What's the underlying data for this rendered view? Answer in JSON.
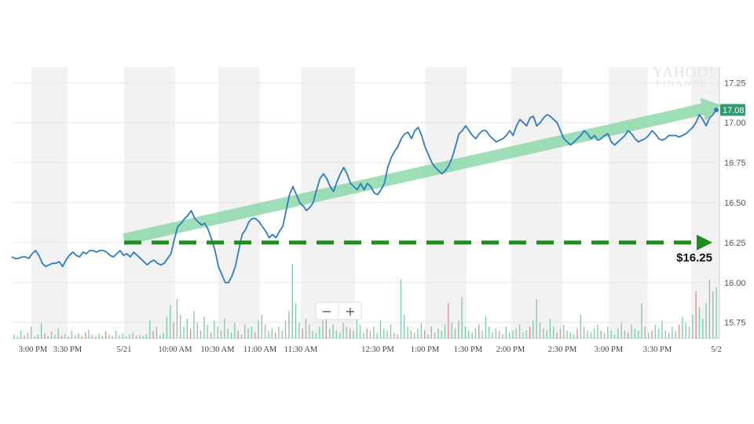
{
  "watermark": {
    "line1": "YAHOO!",
    "line2": "FINANCE"
  },
  "zoom": {
    "minus": "−",
    "plus": "+"
  },
  "price_annotation": {
    "label": "$16.25",
    "level": 16.25,
    "color": "#1e8c1e"
  },
  "trend_arrow": {
    "from": [
      16.27,
      16.27
    ],
    "to": [
      17.11,
      17.11
    ],
    "color": "#7dd4a0"
  },
  "last_price": {
    "label": "17.08",
    "value": 17.08,
    "color": "#2e9c6e"
  },
  "colors": {
    "line": "#2b7bc6",
    "volume_up": "#7fc9a2",
    "volume_down": "#e08a8a",
    "band": "#f2f2f2"
  },
  "chart_data": {
    "type": "line",
    "title": "",
    "xlabel": "",
    "ylabel": "",
    "ylim": [
      15.65,
      17.35
    ],
    "y_ticks": [
      "17.25",
      "17.00",
      "16.75",
      "16.50",
      "16.25",
      "16.00",
      "15.75"
    ],
    "x_ticks": [
      "3:00 PM",
      "3:30 PM",
      "5/21",
      "10:00 AM",
      "10:30 AM",
      "11:00 AM",
      "11:30 AM",
      "12:30 PM",
      "1:00 PM",
      "1:30 PM",
      "2:00 PM",
      "2:30 PM",
      "3:00 PM",
      "3:30 PM",
      "5/2"
    ],
    "grid": true,
    "legend": "none",
    "series": [
      {
        "values": [
          16.16,
          16.15,
          16.15,
          16.16,
          16.16,
          16.15,
          16.18,
          16.2,
          16.17,
          16.12,
          16.1,
          16.11,
          16.12,
          16.12,
          16.13,
          16.1,
          16.14,
          16.17,
          16.19,
          16.17,
          16.16,
          16.19,
          16.18,
          16.2,
          16.2,
          16.19,
          16.2,
          16.2,
          16.19,
          16.17,
          16.16,
          16.18,
          16.2,
          16.17,
          16.18,
          16.16,
          16.19,
          16.17,
          16.15,
          16.13,
          16.11,
          16.13,
          16.14,
          16.12,
          16.11,
          16.12,
          16.15,
          16.18,
          16.27,
          16.35,
          16.37,
          16.4,
          16.42,
          16.45,
          16.4,
          16.38,
          16.36,
          16.37,
          16.33,
          16.27,
          16.2,
          16.1,
          16.05,
          16.0,
          16.0,
          16.04,
          16.1,
          16.2,
          16.3,
          16.33,
          16.38,
          16.4,
          16.4,
          16.38,
          16.35,
          16.32,
          16.28,
          16.3,
          16.28,
          16.32,
          16.35,
          16.45,
          16.55,
          16.6,
          16.55,
          16.5,
          16.48,
          16.45,
          16.47,
          16.5,
          16.58,
          16.65,
          16.68,
          16.65,
          16.6,
          16.57,
          16.63,
          16.68,
          16.72,
          16.68,
          16.62,
          16.6,
          16.58,
          16.62,
          16.58,
          16.62,
          16.6,
          16.56,
          16.55,
          16.58,
          16.62,
          16.72,
          16.78,
          16.82,
          16.85,
          16.9,
          16.93,
          16.94,
          16.9,
          16.95,
          16.97,
          16.92,
          16.85,
          16.8,
          16.75,
          16.72,
          16.7,
          16.68,
          16.7,
          16.73,
          16.78,
          16.85,
          16.93,
          16.95,
          16.98,
          16.95,
          16.92,
          16.9,
          16.93,
          16.95,
          16.95,
          16.92,
          16.9,
          16.88,
          16.89,
          16.9,
          16.92,
          16.95,
          16.92,
          16.98,
          17.02,
          17.0,
          16.98,
          17.03,
          17.04,
          16.98,
          17.0,
          17.03,
          17.05,
          17.04,
          17.02,
          17.0,
          16.95,
          16.9,
          16.88,
          16.86,
          16.88,
          16.9,
          16.92,
          16.95,
          16.93,
          16.9,
          16.92,
          16.89,
          16.9,
          16.92,
          16.93,
          16.88,
          16.86,
          16.88,
          16.9,
          16.92,
          16.95,
          16.93,
          16.9,
          16.88,
          16.89,
          16.9,
          16.92,
          16.95,
          16.93,
          16.9,
          16.89,
          16.9,
          16.92,
          16.92,
          16.92,
          16.91,
          16.92,
          16.93,
          16.95,
          16.97,
          17.0,
          17.05,
          17.02,
          16.98,
          17.03,
          17.05,
          17.08
        ]
      }
    ],
    "volume": {
      "values": [
        0.1,
        0.05,
        0.2,
        0.08,
        0.15,
        0.3,
        0.05,
        0.1,
        0.4,
        0.12,
        0.06,
        0.18,
        0.09,
        0.25,
        0.07,
        0.11,
        0.05,
        0.2,
        0.08,
        0.13,
        0.06,
        0.15,
        0.22,
        0.09,
        0.05,
        0.12,
        0.07,
        0.18,
        0.1,
        0.06,
        0.2,
        0.08,
        0.12,
        0.05,
        0.1,
        0.15,
        0.07,
        0.09,
        0.06,
        0.11,
        0.45,
        0.2,
        0.3,
        0.08,
        0.15,
        0.55,
        0.85,
        0.4,
        1.0,
        0.6,
        0.3,
        0.5,
        0.25,
        0.7,
        0.4,
        0.2,
        0.55,
        0.35,
        0.15,
        0.45,
        0.3,
        0.2,
        0.5,
        0.25,
        0.15,
        0.4,
        0.2,
        0.1,
        0.35,
        0.25,
        0.3,
        0.15,
        0.45,
        0.6,
        0.35,
        0.2,
        0.25,
        0.15,
        0.3,
        0.2,
        0.45,
        0.7,
        1.9,
        0.9,
        0.4,
        0.25,
        0.5,
        0.35,
        0.2,
        0.15,
        0.3,
        0.45,
        0.6,
        0.25,
        0.35,
        0.2,
        0.15,
        0.4,
        0.3,
        0.25,
        0.2,
        0.55,
        0.35,
        0.15,
        0.25,
        0.2,
        0.3,
        0.15,
        0.45,
        0.25,
        0.2,
        0.35,
        0.15,
        0.1,
        1.5,
        0.6,
        0.3,
        0.2,
        0.15,
        0.25,
        0.4,
        0.2,
        0.1,
        0.3,
        0.15,
        0.25,
        0.2,
        0.35,
        0.9,
        0.4,
        0.25,
        0.45,
        1.05,
        0.3,
        0.2,
        0.15,
        0.25,
        0.35,
        0.2,
        0.55,
        0.3,
        0.15,
        0.25,
        0.2,
        0.1,
        0.3,
        0.15,
        0.2,
        0.25,
        0.35,
        0.15,
        0.2,
        0.3,
        0.45,
        1.0,
        0.4,
        0.25,
        0.2,
        0.5,
        0.3,
        0.15,
        0.25,
        0.35,
        0.2,
        0.15,
        0.1,
        0.25,
        0.6,
        0.3,
        0.2,
        0.15,
        0.25,
        0.35,
        0.2,
        0.15,
        0.3,
        0.2,
        0.1,
        0.25,
        0.4,
        0.2,
        0.15,
        0.35,
        0.25,
        0.2,
        0.9,
        0.3,
        0.15,
        0.2,
        0.35,
        0.25,
        0.45,
        0.2,
        0.15,
        0.3,
        0.2,
        0.35,
        0.55,
        0.4,
        0.3,
        0.6,
        1.2,
        0.8,
        0.5,
        0.9,
        1.5,
        1.2,
        1.3
      ],
      "down": [
        3,
        9,
        14,
        21,
        27,
        41,
        47,
        52,
        58,
        66,
        71,
        77,
        85,
        92,
        99,
        104,
        113,
        121,
        128,
        137,
        144,
        152,
        160,
        166,
        173,
        181,
        188,
        196,
        201
      ]
    }
  }
}
